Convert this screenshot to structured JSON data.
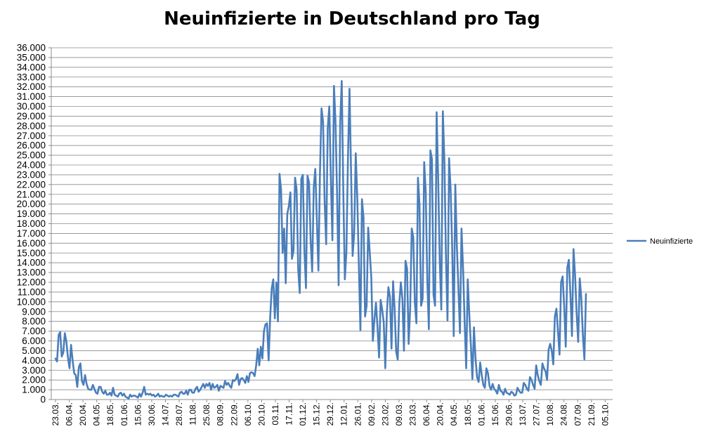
{
  "chart_data": {
    "type": "line",
    "title": "Neuinfizierte in Deutschland pro Tag",
    "xlabel": "",
    "ylabel": "",
    "ylim": [
      0,
      36000
    ],
    "y_ticks": [
      "0",
      "1.000",
      "2.000",
      "3.000",
      "4.000",
      "5.000",
      "6.000",
      "7.000",
      "8.000",
      "9.000",
      "10.000",
      "11.000",
      "12.000",
      "13.000",
      "14.000",
      "15.000",
      "16.000",
      "17.000",
      "18.000",
      "19.000",
      "20.000",
      "21.000",
      "22.000",
      "23.000",
      "24.000",
      "25.000",
      "26.000",
      "27.000",
      "28.000",
      "29.000",
      "30.000",
      "31.000",
      "32.000",
      "33.000",
      "34.000",
      "35.000",
      "36.000"
    ],
    "x_ticks": [
      "23.03.",
      "06.04.",
      "20.04.",
      "04.05.",
      "18.05.",
      "01.06.",
      "15.06.",
      "30.06.",
      "14.07.",
      "28.07.",
      "11.08.",
      "25.08.",
      "08.09.",
      "22.09.",
      "06.10.",
      "20.10.",
      "03.11.",
      "17.11.",
      "01.12.",
      "15.12.",
      "29.12.",
      "12.01.",
      "26.01.",
      "09.02.",
      "23.02.",
      "09.03.",
      "23.03.",
      "06.04.",
      "20.04.",
      "04.05.",
      "18.05.",
      "01.06.",
      "15.06.",
      "29.06.",
      "13.07.",
      "27.07.",
      "10.08.",
      "24.08.",
      "07.09.",
      "21.09.",
      "05.10."
    ],
    "grid": true,
    "legend_position": "right",
    "line_color": "#4a7ebb",
    "series": [
      {
        "name": "Neuinfizierte",
        "x_start": "23.03.",
        "values": [
          4200,
          3900,
          6600,
          6900,
          4400,
          4800,
          6800,
          5900,
          4300,
          3200,
          5600,
          4000,
          2700,
          2500,
          1300,
          3300,
          3700,
          1900,
          1500,
          2500,
          1600,
          1100,
          1000,
          1000,
          1500,
          1100,
          700,
          600,
          1300,
          1300,
          800,
          600,
          900,
          500,
          500,
          700,
          400,
          1200,
          500,
          400,
          300,
          600,
          700,
          400,
          600,
          300,
          200,
          100,
          500,
          300,
          400,
          400,
          300,
          200,
          600,
          300,
          700,
          1300,
          500,
          600,
          500,
          600,
          400,
          500,
          300,
          400,
          600,
          300,
          400,
          300,
          300,
          500,
          400,
          300,
          400,
          300,
          500,
          500,
          400,
          300,
          700,
          800,
          600,
          600,
          900,
          500,
          1000,
          1000,
          700,
          700,
          1100,
          1300,
          800,
          1000,
          1300,
          1600,
          1200,
          1600,
          1400,
          1700,
          1000,
          1600,
          1200,
          1300,
          1500,
          900,
          1400,
          1300,
          1200,
          1900,
          1500,
          1700,
          1400,
          1200,
          2000,
          1900,
          2100,
          2600,
          1500,
          2100,
          2200,
          2000,
          1700,
          2400,
          1800,
          2700,
          2800,
          2700,
          2400,
          3500,
          5200,
          3500,
          5400,
          4200,
          7000,
          7700,
          7800,
          4000,
          8400,
          11400,
          12300,
          8300,
          12000,
          8000,
          23100,
          21500,
          15000,
          17500,
          11900,
          19000,
          19800,
          21200,
          14400,
          15200,
          22700,
          21500,
          13400,
          10900,
          22600,
          23000,
          15300,
          11400,
          22900,
          22200,
          16300,
          13100,
          21700,
          23600,
          18400,
          13200,
          23100,
          29800,
          28400,
          20300,
          15900,
          27800,
          30000,
          22600,
          16300,
          32100,
          28400,
          21100,
          11700,
          28300,
          32600,
          21400,
          12300,
          15100,
          24700,
          31800,
          23300,
          14700,
          17000,
          25200,
          20600,
          13800,
          7100,
          20500,
          18600,
          8500,
          9600,
          17600,
          15100,
          12500,
          6000,
          8200,
          9900,
          7400,
          4300,
          10200,
          9200,
          7900,
          3200,
          8800,
          11500,
          10500,
          5200,
          12100,
          9300,
          4900,
          4100,
          9800,
          12000,
          10300,
          5000,
          14200,
          13400,
          5700,
          9300,
          17500,
          16600,
          9900,
          7800,
          22700,
          19900,
          9600,
          10300,
          24300,
          21200,
          12200,
          7200,
          25500,
          24600,
          10700,
          9600,
          29400,
          22500,
          14300,
          9200,
          29500,
          24400,
          14500,
          8100,
          24700,
          21500,
          15600,
          6500,
          22000,
          15800,
          11400,
          6800,
          17500,
          13400,
          8000,
          3200,
          12300,
          8700,
          5600,
          2100,
          7400,
          4200,
          2300,
          1800,
          3800,
          2500,
          1500,
          1200,
          3200,
          2700,
          1400,
          1000,
          1600,
          1100,
          900,
          600,
          1500,
          900,
          800,
          500,
          1100,
          700,
          600,
          500,
          800,
          700,
          400,
          500,
          1200,
          900,
          700,
          700,
          1700,
          1500,
          1100,
          900,
          2300,
          2000,
          1500,
          1100,
          3500,
          2500,
          1900,
          1500,
          3700,
          3200,
          2900,
          2000,
          5100,
          5700,
          5000,
          3600,
          8500,
          9300,
          7000,
          4600,
          12000,
          12600,
          9600,
          5400,
          13500,
          14300,
          10800,
          6500,
          15400,
          12700,
          8800,
          5900,
          12400,
          10400,
          6600,
          4100,
          10800
        ]
      }
    ]
  }
}
